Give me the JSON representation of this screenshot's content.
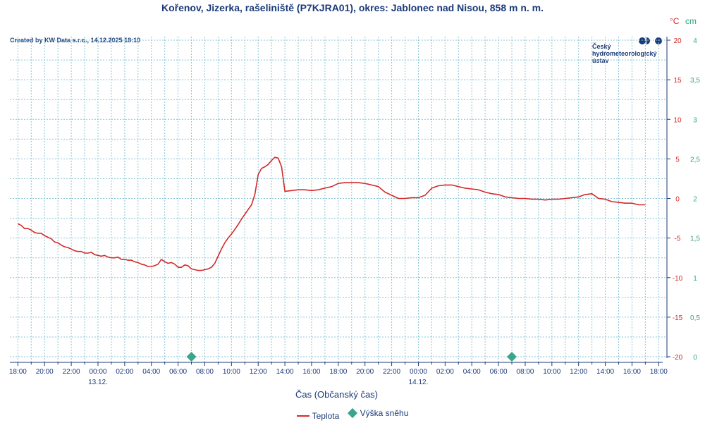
{
  "title": "Kořenov, Jizerka, rašeliniště (P7KJRA01), okres: Jablonec nad Nisou, 858 m n. m.",
  "created": "Created by KW Data s.r.o., 14.12.2025 18:10",
  "logo": {
    "line1": "Český",
    "line2": "hydrometeorologický",
    "line3": "ústav"
  },
  "unit_temp": "°C",
  "unit_snow": "cm",
  "legend": {
    "temp": "Teplota",
    "snow": "Výška sněhu"
  },
  "colors": {
    "temp": "#d42a2a",
    "snow": "#3aa58a",
    "grid": "#8ac6d8",
    "text": "#1b3a7a"
  },
  "chart_data": {
    "type": "line",
    "xlabel": "Čas (Občanský čas)",
    "x_ticks": [
      "18:00",
      "20:00",
      "22:00",
      "00:00",
      "02:00",
      "04:00",
      "06:00",
      "08:00",
      "10:00",
      "12:00",
      "14:00",
      "16:00",
      "18:00",
      "20:00",
      "22:00",
      "00:00",
      "02:00",
      "04:00",
      "06:00",
      "08:00",
      "10:00",
      "12:00",
      "14:00",
      "16:00",
      "18:00"
    ],
    "date_labels": [
      {
        "label": "13.12.",
        "tick_index": 3
      },
      {
        "label": "14.12.",
        "tick_index": 15
      }
    ],
    "x_range_hours": [
      -0.6,
      48.3
    ],
    "y_left_ticks": [
      "20",
      "15",
      "10",
      "5",
      "0",
      "-5",
      "-10",
      "-15",
      "-20"
    ],
    "y_right_ticks": [
      "4",
      "3,5",
      "3",
      "2,5",
      "2",
      "1,5",
      "1",
      "0,5",
      "0"
    ],
    "y_left_range": [
      -20,
      20
    ],
    "y_right_range": [
      0,
      4
    ],
    "grid": true,
    "legend_position": "bottom-center",
    "series": [
      {
        "name": "Teplota",
        "axis": "left",
        "x_hours": [
          0,
          0.25,
          0.5,
          0.75,
          1,
          1.25,
          1.5,
          1.75,
          2,
          2.25,
          2.5,
          2.75,
          3,
          3.25,
          3.5,
          3.75,
          4,
          4.25,
          4.5,
          4.75,
          5,
          5.25,
          5.5,
          5.75,
          6,
          6.25,
          6.5,
          6.75,
          7,
          7.25,
          7.5,
          7.75,
          8,
          8.25,
          8.5,
          8.75,
          9,
          9.25,
          9.5,
          9.75,
          10,
          10.25,
          10.5,
          10.75,
          11,
          11.25,
          11.5,
          11.75,
          12,
          12.25,
          12.5,
          12.75,
          13,
          13.25,
          13.5,
          13.75,
          14,
          14.25,
          14.5,
          14.75,
          15,
          15.25,
          15.5,
          15.75,
          16,
          16.25,
          16.5,
          16.75,
          17,
          17.25,
          17.5,
          17.75,
          18,
          18.25,
          18.5,
          18.75,
          19,
          19.25,
          19.5,
          19.75,
          20,
          20.5,
          21,
          21.5,
          22,
          22.5,
          23,
          23.5,
          24,
          24.5,
          25,
          25.5,
          26,
          26.5,
          27,
          27.5,
          28,
          28.5,
          29,
          29.5,
          30,
          30.5,
          31,
          31.5,
          32,
          32.5,
          33,
          33.5,
          34,
          34.5,
          35,
          35.5,
          36,
          36.5,
          37,
          37.5,
          38,
          38.5,
          39,
          39.5,
          40,
          40.5,
          41,
          41.5,
          42,
          42.5,
          43,
          43.5,
          44,
          44.5,
          45,
          45.5,
          46,
          46.5,
          47
        ],
        "values": [
          -3.2,
          -3.4,
          -3.8,
          -3.8,
          -4,
          -4.3,
          -4.4,
          -4.4,
          -4.7,
          -4.9,
          -5.1,
          -5.5,
          -5.6,
          -5.9,
          -6.1,
          -6.2,
          -6.4,
          -6.6,
          -6.7,
          -6.7,
          -6.9,
          -6.9,
          -6.8,
          -7.1,
          -7.2,
          -7.3,
          -7.2,
          -7.4,
          -7.5,
          -7.5,
          -7.4,
          -7.7,
          -7.7,
          -7.8,
          -7.8,
          -8,
          -8.1,
          -8.3,
          -8.4,
          -8.6,
          -8.6,
          -8.5,
          -8.3,
          -7.7,
          -8,
          -8.2,
          -8.1,
          -8.3,
          -8.7,
          -8.7,
          -8.4,
          -8.5,
          -8.9,
          -9,
          -9.1,
          -9.1,
          -9,
          -8.9,
          -8.7,
          -8.2,
          -7.3,
          -6.4,
          -5.6,
          -5,
          -4.5,
          -3.9,
          -3.3,
          -2.6,
          -2,
          -1.4,
          -0.8,
          0.5,
          3,
          3.8,
          4,
          4.3,
          4.8,
          5.2,
          5.1,
          4,
          0.9,
          1,
          1.1,
          1.1,
          1,
          1.1,
          1.3,
          1.5,
          1.9,
          2,
          2,
          2,
          1.9,
          1.7,
          1.5,
          0.8,
          0.4,
          0,
          0,
          0.1,
          0.1,
          0.4,
          1.3,
          1.6,
          1.7,
          1.7,
          1.5,
          1.3,
          1.2,
          1.1,
          0.8,
          0.6,
          0.5,
          0.2,
          0.1,
          0,
          0,
          -0.1,
          -0.1,
          -0.2,
          -0.1,
          -0.1,
          0,
          0.1,
          0.2,
          0.5,
          0.6,
          0,
          -0.1,
          -0.4,
          -0.5,
          -0.6,
          -0.6,
          -0.8,
          -0.8
        ]
      },
      {
        "name": "Výška sněhu",
        "axis": "right",
        "x_hours": [
          13,
          37
        ],
        "values": [
          0,
          0
        ]
      }
    ]
  }
}
